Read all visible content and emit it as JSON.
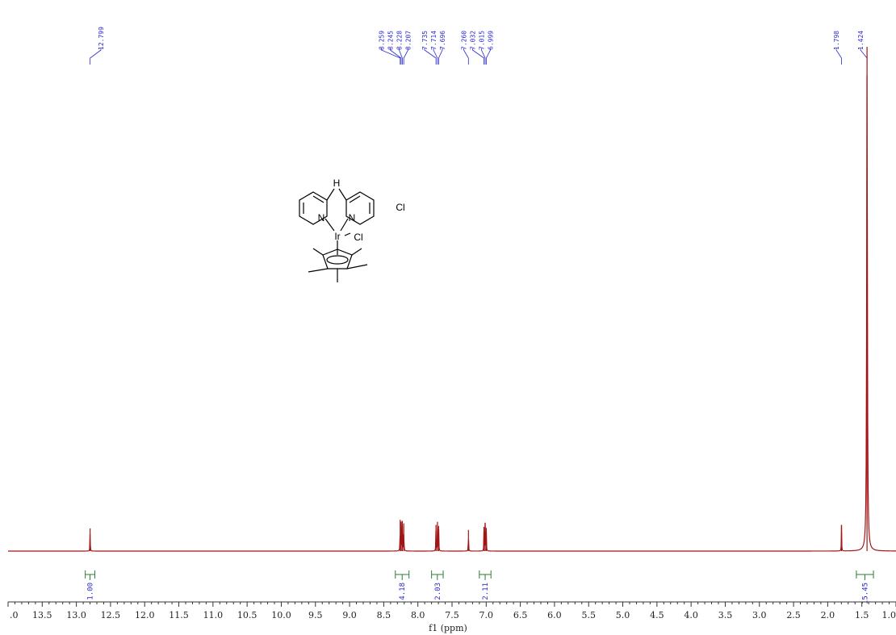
{
  "chart_data": {
    "type": "line",
    "subtype": "1H-NMR spectrum",
    "xlabel": "f1 (ppm)",
    "x_axis_reversed": true,
    "xlim": [
      14.0,
      1.0
    ],
    "x_ticks": [
      "13.5",
      "13.0",
      "12.5",
      "12.0",
      "11.5",
      "11.0",
      "10.5",
      "10.0",
      "9.5",
      "9.0",
      "8.5",
      "8.0",
      "7.5",
      "7.0",
      "6.5",
      "6.0",
      "5.5",
      "5.0",
      "4.5",
      "4.0",
      "3.5",
      "3.0",
      "2.5",
      "2.0",
      "1.5",
      "1.0"
    ],
    "x_edge_tick_label": ".0",
    "grid": false,
    "spectrum_color": "#a31515",
    "label_color": "#2b2bd1",
    "integral_color": "#2e7d32",
    "peaks": [
      {
        "ppm": 12.799,
        "height": 0.045
      },
      {
        "ppm": 8.259,
        "height": 0.062
      },
      {
        "ppm": 8.245,
        "height": 0.057
      },
      {
        "ppm": 8.228,
        "height": 0.06
      },
      {
        "ppm": 8.207,
        "height": 0.055
      },
      {
        "ppm": 7.735,
        "height": 0.052
      },
      {
        "ppm": 7.714,
        "height": 0.058
      },
      {
        "ppm": 7.696,
        "height": 0.05
      },
      {
        "ppm": 7.26,
        "height": 0.042
      },
      {
        "ppm": 7.032,
        "height": 0.048
      },
      {
        "ppm": 7.015,
        "height": 0.056
      },
      {
        "ppm": 6.999,
        "height": 0.046
      },
      {
        "ppm": 1.798,
        "height": 0.052
      },
      {
        "ppm": 1.424,
        "height": 1.0
      }
    ],
    "peak_label_groups": [
      {
        "labels": [
          "12.799"
        ],
        "ppm": [
          12.799
        ]
      },
      {
        "labels": [
          "8.259",
          "8.245",
          "8.228",
          "8.207"
        ],
        "ppm": [
          8.259,
          8.245,
          8.228,
          8.207
        ]
      },
      {
        "labels": [
          "7.735",
          "7.714",
          "7.696"
        ],
        "ppm": [
          7.735,
          7.714,
          7.696
        ]
      },
      {
        "labels": [
          "7.260",
          "7.032",
          "7.015",
          "6.999"
        ],
        "ppm": [
          7.26,
          7.032,
          7.015,
          6.999
        ]
      },
      {
        "labels": [
          "1.798"
        ],
        "ppm": [
          1.798
        ]
      },
      {
        "labels": [
          "1.424"
        ],
        "ppm": [
          1.424
        ]
      }
    ],
    "integrals": [
      {
        "value": "1.00",
        "from": 12.87,
        "to": 12.73
      },
      {
        "value": "4.18",
        "from": 8.33,
        "to": 8.13
      },
      {
        "value": "2.03",
        "from": 7.8,
        "to": 7.63
      },
      {
        "value": "2.11",
        "from": 7.1,
        "to": 6.93
      },
      {
        "value": "15.45",
        "from": 1.58,
        "to": 1.33
      }
    ]
  },
  "structure": {
    "nh_label": "H",
    "n_left": "N",
    "n_right": "N",
    "metal": "Ir",
    "ligand_cl": "Cl",
    "counter_ion": "Cl"
  }
}
